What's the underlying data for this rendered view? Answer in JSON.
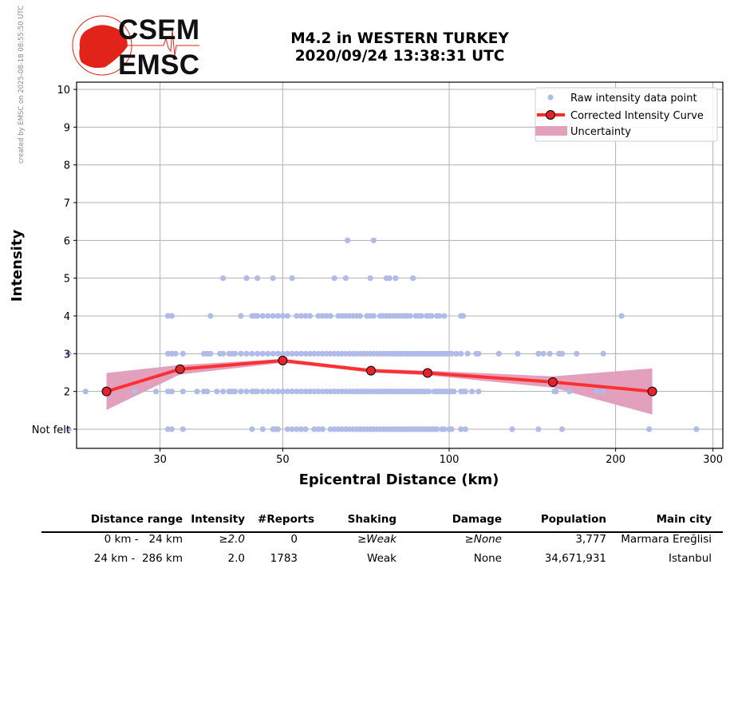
{
  "credit": "created by EMSC on 2025-08-18 08:55:50 UTC",
  "logo": {
    "top": "CSEM",
    "bottom": "EMSC"
  },
  "title": {
    "line1": "M4.2 in WESTERN TURKEY",
    "line2": "2020/09/24 13:38:31 UTC"
  },
  "colors": {
    "raw": "#b0bbe8",
    "curve": "#ff2a2a",
    "marker": "#e8222a",
    "uncertainty": "#e3a0bd",
    "logo_red": "#e2231a"
  },
  "chart_data": {
    "type": "scatter",
    "xlabel": "Epicentral Distance (km)",
    "ylabel": "Intensity",
    "xscale": "log",
    "xlim": [
      18.5,
      310
    ],
    "ylim": [
      0.5,
      10.2
    ],
    "xticks": [
      {
        "v": 30,
        "label": "30"
      },
      {
        "v": 50,
        "label": "50"
      },
      {
        "v": 100,
        "label": "100"
      },
      {
        "v": 200,
        "label": "200"
      },
      {
        "v": 300,
        "label": "300"
      }
    ],
    "yticks": [
      {
        "v": 1,
        "label": "Not felt"
      },
      {
        "v": 2,
        "label": "2"
      },
      {
        "v": 3,
        "label": "3"
      },
      {
        "v": 4,
        "label": "4"
      },
      {
        "v": 5,
        "label": "5"
      },
      {
        "v": 6,
        "label": "6"
      },
      {
        "v": 7,
        "label": "7"
      },
      {
        "v": 8,
        "label": "8"
      },
      {
        "v": 9,
        "label": "9"
      },
      {
        "v": 10,
        "label": "10"
      }
    ],
    "grid": true,
    "legend": {
      "placement": "top-right",
      "entries": [
        "Raw intensity data point",
        "Corrected Intensity Curve",
        "Uncertainty"
      ]
    },
    "raw_points": {
      "1": [
        20.5,
        31,
        31.5,
        33,
        44,
        46,
        48,
        48.5,
        49,
        51,
        52,
        53,
        54,
        55,
        57,
        58,
        59,
        61,
        62,
        63,
        64,
        65,
        66,
        67,
        68,
        69,
        70,
        71,
        72,
        73,
        74,
        75,
        76,
        77,
        78,
        79,
        80,
        81,
        82,
        83,
        84,
        85,
        86,
        87,
        88,
        89,
        90,
        91,
        92,
        93,
        94,
        95,
        97,
        98,
        100,
        101,
        105,
        107,
        130,
        145,
        160,
        230,
        280
      ],
      "2": [
        22,
        27,
        29.5,
        31,
        31.5,
        33,
        35,
        36,
        36.5,
        38,
        39,
        40,
        40.5,
        41,
        42,
        43,
        44,
        44.5,
        45,
        46,
        47,
        48,
        49,
        50,
        51,
        52,
        53,
        54,
        55,
        56,
        57,
        58,
        59,
        60,
        61,
        62,
        63,
        64,
        65,
        66,
        67,
        68,
        69,
        70,
        71,
        72,
        73,
        74,
        75,
        76,
        77,
        78,
        79,
        80,
        81,
        82,
        83,
        84,
        85,
        86,
        87,
        88,
        89,
        90,
        91,
        92,
        94,
        95,
        96,
        97,
        98,
        99,
        100,
        101,
        102,
        105,
        106,
        107,
        110,
        113,
        155,
        156,
        165,
        185,
        190
      ],
      "3": [
        20.5,
        31,
        31.5,
        32,
        33,
        36,
        36.5,
        37,
        38.5,
        39,
        40,
        40.5,
        41,
        42,
        43,
        44,
        45,
        46,
        47,
        48,
        49,
        50,
        51,
        52,
        53,
        54,
        55,
        56,
        57,
        58,
        59,
        60,
        61,
        62,
        63,
        64,
        65,
        66,
        67,
        68,
        69,
        70,
        71,
        72,
        73,
        74,
        75,
        76,
        77,
        78,
        79,
        80,
        81,
        82,
        83,
        84,
        85,
        86,
        87,
        88,
        89,
        90,
        91,
        92,
        93,
        94,
        95,
        96,
        97,
        98,
        99,
        100,
        101,
        103,
        105,
        108,
        112,
        113,
        123,
        133,
        145,
        148,
        152,
        158,
        160,
        170,
        190
      ],
      "4": [
        31,
        31.5,
        37,
        42,
        44,
        44.5,
        45,
        46,
        47,
        48,
        49,
        50,
        51,
        53,
        54,
        55,
        56,
        58,
        59,
        60,
        61,
        63,
        64,
        65,
        66,
        67,
        68,
        69,
        71,
        72,
        73,
        75,
        76,
        77,
        78,
        79,
        80,
        81,
        82,
        83,
        84,
        85,
        87,
        88,
        89,
        91,
        92,
        93,
        95,
        96,
        98,
        105,
        106,
        205
      ],
      "5": [
        39,
        43,
        45,
        48,
        52,
        62,
        65,
        72,
        77,
        78,
        80,
        86
      ],
      "6": [
        65.5,
        73
      ]
    },
    "curve": {
      "x": [
        24,
        32.6,
        50,
        72.2,
        91.4,
        154,
        233
      ],
      "y": [
        2.0,
        2.59,
        2.82,
        2.55,
        2.49,
        2.25,
        2.0
      ]
    },
    "uncertainty": {
      "x": [
        24,
        32.6,
        50,
        72.2,
        91.4,
        154,
        233
      ],
      "upper": [
        2.49,
        2.7,
        2.86,
        2.6,
        2.55,
        2.4,
        2.61
      ],
      "lower": [
        1.51,
        2.45,
        2.76,
        2.5,
        2.43,
        2.1,
        1.39
      ]
    }
  },
  "table": {
    "headers": [
      "Distance range",
      "Intensity",
      "#Reports",
      "Shaking",
      "Damage",
      "Population",
      "Main city"
    ],
    "rows": [
      [
        "0 km -   24 km",
        "≥2.0",
        "0",
        "≥Weak",
        "≥None",
        "3,777",
        "Marmara Ereğlisi"
      ],
      [
        "24 km -  286 km",
        "2.0",
        "1783",
        "Weak",
        "None",
        "34,671,931",
        "Istanbul"
      ]
    ]
  }
}
